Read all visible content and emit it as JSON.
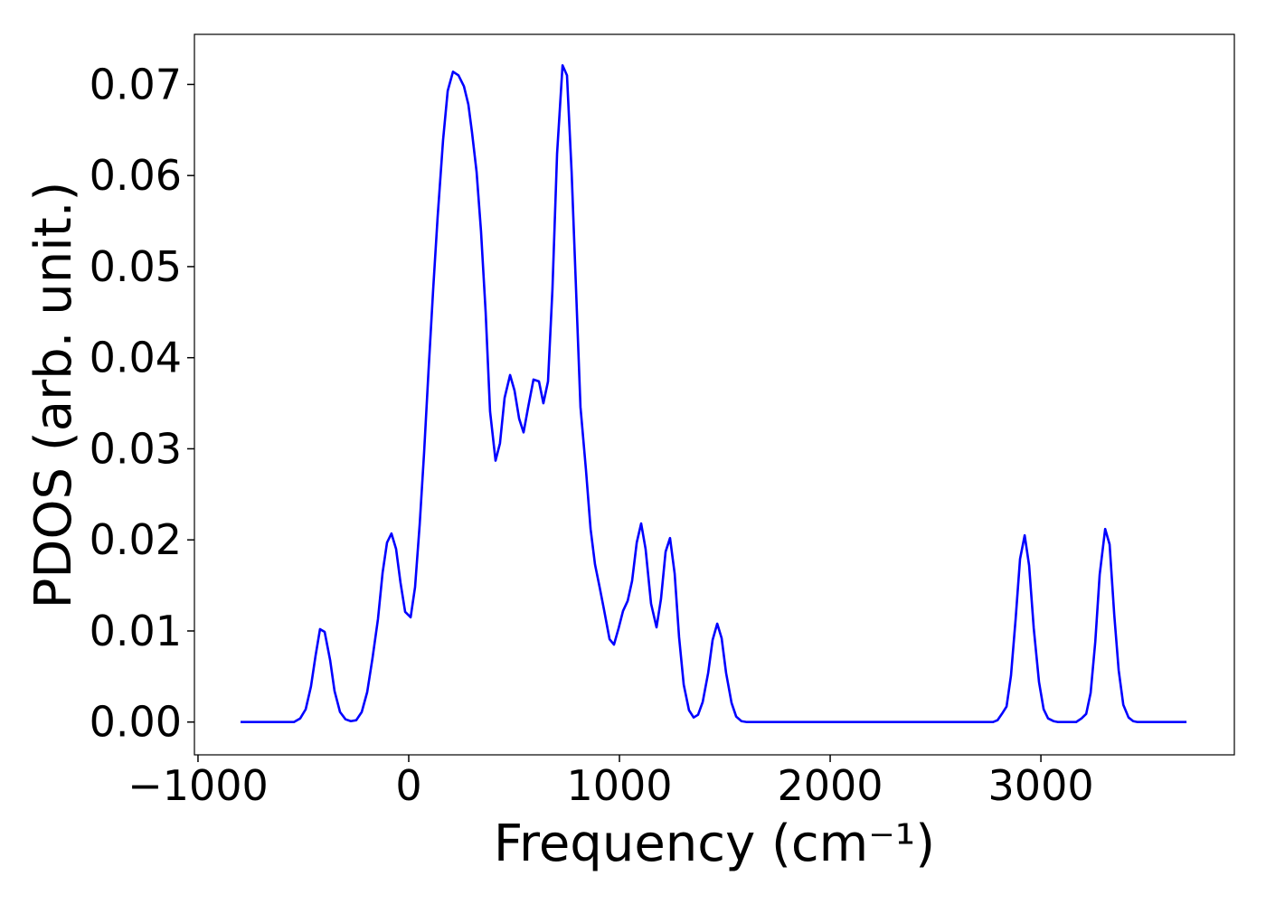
{
  "chart_data": {
    "type": "line",
    "xlabel": "Frequency (cm⁻¹)",
    "ylabel": "PDOS (arb. unit.)",
    "color": "#0000ff",
    "x": [
      -798,
      -545,
      -515,
      -489,
      -464,
      -442,
      -421,
      -399,
      -373,
      -352,
      -326,
      -300,
      -275,
      -249,
      -223,
      -197,
      -172,
      -146,
      -124,
      -103,
      -82,
      -60,
      -39,
      -17,
      9,
      30,
      52,
      73,
      94,
      116,
      137,
      163,
      185,
      210,
      236,
      262,
      283,
      300,
      322,
      343,
      365,
      386,
      412,
      433,
      455,
      481,
      502,
      524,
      545,
      567,
      592,
      618,
      639,
      661,
      682,
      704,
      730,
      751,
      773,
      794,
      815,
      841,
      863,
      884,
      906,
      927,
      953,
      974,
      996,
      1017,
      1039,
      1060,
      1082,
      1103,
      1124,
      1150,
      1176,
      1197,
      1219,
      1240,
      1262,
      1283,
      1305,
      1330,
      1352,
      1373,
      1395,
      1421,
      1442,
      1464,
      1485,
      1506,
      1532,
      1554,
      1579,
      1605,
      2773,
      2794,
      2815,
      2837,
      2858,
      2880,
      2901,
      2923,
      2944,
      2966,
      2991,
      3013,
      3034,
      3060,
      3082,
      3167,
      3193,
      3215,
      3236,
      3258,
      3279,
      3305,
      3326,
      3348,
      3369,
      3391,
      3416,
      3438,
      3459,
      3691
    ],
    "values": [
      0,
      0,
      0.0004,
      0.0014,
      0.0039,
      0.0073,
      0.0102,
      0.0099,
      0.0068,
      0.0034,
      0.0011,
      0.0003,
      0.0001,
      0.0002,
      0.0011,
      0.0033,
      0.007,
      0.0113,
      0.0164,
      0.0197,
      0.0207,
      0.019,
      0.0153,
      0.0121,
      0.0115,
      0.0148,
      0.0217,
      0.0296,
      0.0386,
      0.0475,
      0.0554,
      0.0639,
      0.0693,
      0.0714,
      0.071,
      0.0698,
      0.0678,
      0.0648,
      0.0604,
      0.0539,
      0.045,
      0.0341,
      0.0287,
      0.0306,
      0.0356,
      0.0381,
      0.0364,
      0.0333,
      0.0318,
      0.0346,
      0.0376,
      0.0374,
      0.035,
      0.0374,
      0.0475,
      0.0624,
      0.0721,
      0.071,
      0.0604,
      0.0475,
      0.0346,
      0.0277,
      0.0212,
      0.0173,
      0.0148,
      0.0123,
      0.0091,
      0.0085,
      0.0103,
      0.0122,
      0.0133,
      0.0155,
      0.0197,
      0.0218,
      0.019,
      0.013,
      0.0104,
      0.0135,
      0.0187,
      0.0202,
      0.0163,
      0.0093,
      0.0041,
      0.0013,
      0.0005,
      0.0008,
      0.0022,
      0.0054,
      0.009,
      0.0108,
      0.0092,
      0.0054,
      0.0021,
      0.0006,
      0.0001,
      0,
      0,
      0.0002,
      0.0009,
      0.0017,
      0.0051,
      0.0113,
      0.0179,
      0.0205,
      0.0172,
      0.0103,
      0.0044,
      0.0014,
      0.0004,
      0.0001,
      0,
      0,
      0.0004,
      0.0009,
      0.0032,
      0.0088,
      0.0162,
      0.0212,
      0.0195,
      0.0118,
      0.0057,
      0.0019,
      0.0005,
      0.0001,
      0,
      0
    ],
    "xlim": [
      -1017,
      3918
    ],
    "ylim": [
      -0.0036,
      0.0755
    ],
    "xticks": [
      {
        "value": -1000,
        "label": "−1000"
      },
      0,
      1000,
      2000,
      3000
    ],
    "yticks": [
      {
        "value": 0,
        "label": "0.00"
      },
      {
        "value": 0.01,
        "label": "0.01"
      },
      {
        "value": 0.02,
        "label": "0.02"
      },
      {
        "value": 0.03,
        "label": "0.03"
      },
      {
        "value": 0.04,
        "label": "0.04"
      },
      {
        "value": 0.05,
        "label": "0.05"
      },
      {
        "value": 0.06,
        "label": "0.06"
      },
      {
        "value": 0.07,
        "label": "0.07"
      }
    ]
  }
}
